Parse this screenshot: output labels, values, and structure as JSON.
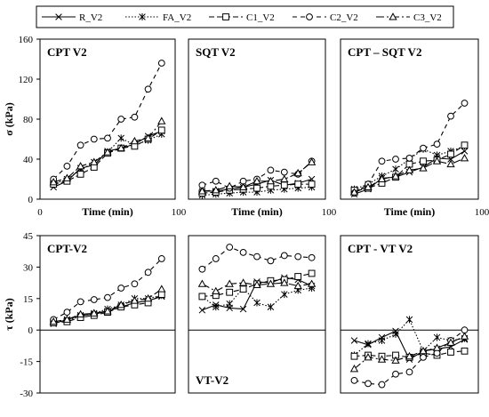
{
  "legend": {
    "entries": [
      {
        "name": "R_V2",
        "dash": "",
        "marker": "x"
      },
      {
        "name": "FA_V2",
        "dash": "1.5,2",
        "marker": "star"
      },
      {
        "name": "C1_V2",
        "dash": "6,3",
        "marker": "square"
      },
      {
        "name": "C2_V2",
        "dash": "5,4",
        "marker": "circle"
      },
      {
        "name": "C3_V2",
        "dash": "9,3,2,3",
        "marker": "triangle"
      }
    ]
  },
  "chart_data": [
    {
      "type": "line",
      "title": "CPT V2",
      "title_position": "top-left",
      "xlabel": "Time (min)",
      "ylabel": "σ (kPa)",
      "xlim": [
        0,
        100
      ],
      "ylim": [
        0,
        160
      ],
      "yticks": [
        0,
        40,
        80,
        120,
        160
      ],
      "yticks_shown": true,
      "xticks": [
        0,
        100
      ],
      "series": [
        {
          "name": "R_V2",
          "x": [
            10,
            20,
            30,
            40,
            50,
            60,
            70,
            80,
            90
          ],
          "y": [
            12,
            18,
            31,
            34,
            48,
            51,
            55,
            63,
            68
          ]
        },
        {
          "name": "FA_V2",
          "x": [
            10,
            20,
            30,
            40,
            50,
            60,
            70,
            80,
            90
          ],
          "y": [
            15,
            20,
            29,
            37,
            47,
            61,
            54,
            59,
            65
          ]
        },
        {
          "name": "C1_V2",
          "x": [
            10,
            20,
            30,
            40,
            50,
            60,
            70,
            80,
            90
          ],
          "y": [
            15,
            18,
            25,
            32,
            46,
            51,
            53,
            60,
            69
          ]
        },
        {
          "name": "C2_V2",
          "x": [
            10,
            20,
            30,
            40,
            50,
            60,
            70,
            80,
            90
          ],
          "y": [
            20,
            33,
            54,
            60,
            61,
            80,
            82,
            110,
            136
          ]
        },
        {
          "name": "C3_V2",
          "x": [
            10,
            20,
            30,
            40,
            50,
            60,
            70,
            80,
            90
          ],
          "y": [
            17,
            21,
            33,
            37,
            47,
            51,
            58,
            61,
            78
          ]
        }
      ]
    },
    {
      "type": "line",
      "title": "SQT V2",
      "title_position": "top-left",
      "xlabel": "Time (min)",
      "ylabel": "",
      "xlim": [
        0,
        100
      ],
      "ylim": [
        0,
        160
      ],
      "yticks_shown": false,
      "xticks": [
        100
      ],
      "series": [
        {
          "name": "R_V2",
          "x": [
            10,
            20,
            30,
            40,
            50,
            60,
            70,
            80,
            90
          ],
          "y": [
            8,
            8,
            10,
            12,
            15,
            19,
            14,
            16,
            20
          ]
        },
        {
          "name": "FA_V2",
          "x": [
            10,
            20,
            30,
            40,
            50,
            60,
            70,
            80,
            90
          ],
          "y": [
            4,
            5,
            6,
            7,
            7,
            9,
            10,
            11,
            12
          ]
        },
        {
          "name": "C1_V2",
          "x": [
            10,
            20,
            30,
            40,
            50,
            60,
            70,
            80,
            90
          ],
          "y": [
            6,
            7,
            9,
            10,
            11,
            13,
            14,
            15,
            15
          ]
        },
        {
          "name": "C2_V2",
          "x": [
            10,
            20,
            30,
            40,
            50,
            60,
            70,
            80,
            90
          ],
          "y": [
            14,
            18,
            11,
            18,
            20,
            29,
            27,
            25,
            38
          ]
        },
        {
          "name": "C3_V2",
          "x": [
            10,
            20,
            30,
            40,
            50,
            60,
            70,
            80,
            90
          ],
          "y": [
            8,
            9,
            13,
            12,
            18,
            18,
            20,
            26,
            37
          ]
        }
      ]
    },
    {
      "type": "line",
      "title": "CPT – SQT V2",
      "title_position": "top-left",
      "xlabel": "Time (min)",
      "ylabel": "",
      "xlim": [
        0,
        100
      ],
      "ylim": [
        0,
        160
      ],
      "yticks_shown": false,
      "xticks": [
        100
      ],
      "series": [
        {
          "name": "R_V2",
          "x": [
            10,
            20,
            30,
            40,
            50,
            60,
            70,
            80,
            90
          ],
          "y": [
            5,
            10,
            21,
            22,
            27,
            32,
            41,
            40,
            48
          ]
        },
        {
          "name": "FA_V2",
          "x": [
            10,
            20,
            30,
            40,
            50,
            60,
            70,
            80,
            90
          ],
          "y": [
            10,
            15,
            23,
            30,
            40,
            50,
            44,
            48,
            53
          ]
        },
        {
          "name": "C1_V2",
          "x": [
            10,
            20,
            30,
            40,
            50,
            60,
            70,
            80,
            90
          ],
          "y": [
            9,
            11,
            16,
            22,
            35,
            38,
            39,
            45,
            54
          ]
        },
        {
          "name": "C2_V2",
          "x": [
            10,
            20,
            30,
            40,
            50,
            60,
            70,
            80,
            90
          ],
          "y": [
            6,
            15,
            38,
            40,
            41,
            51,
            55,
            83,
            96
          ]
        },
        {
          "name": "C3_V2",
          "x": [
            10,
            20,
            30,
            40,
            50,
            60,
            70,
            80,
            90
          ],
          "y": [
            7,
            12,
            20,
            23,
            29,
            31,
            38,
            35,
            41
          ]
        }
      ]
    },
    {
      "type": "line",
      "title": "CPT-V2",
      "title_position": "top-left",
      "xlabel": "",
      "ylabel": "τ (kPa)",
      "xlim": [
        0,
        100
      ],
      "ylim": [
        -30,
        45
      ],
      "yticks": [
        -30,
        -15,
        0,
        15,
        30,
        45
      ],
      "yticks_shown": true,
      "xticks": [],
      "series": [
        {
          "name": "R_V2",
          "x": [
            10,
            20,
            30,
            40,
            50,
            60,
            70,
            80,
            90
          ],
          "y": [
            3,
            5,
            7,
            7.5,
            9,
            11,
            13,
            14,
            16
          ]
        },
        {
          "name": "FA_V2",
          "x": [
            10,
            20,
            30,
            40,
            50,
            60,
            70,
            80,
            90
          ],
          "y": [
            4,
            4.5,
            6.5,
            8,
            10,
            12,
            15,
            15,
            16.5
          ]
        },
        {
          "name": "C1_V2",
          "x": [
            10,
            20,
            30,
            40,
            50,
            60,
            70,
            80,
            90
          ],
          "y": [
            3.5,
            4,
            6,
            7,
            8.5,
            11,
            12,
            13,
            17
          ]
        },
        {
          "name": "C2_V2",
          "x": [
            10,
            20,
            30,
            40,
            50,
            60,
            70,
            80,
            90
          ],
          "y": [
            5,
            8.5,
            13.5,
            14.5,
            15.5,
            20,
            22,
            27.5,
            34
          ]
        },
        {
          "name": "C3_V2",
          "x": [
            10,
            20,
            30,
            40,
            50,
            60,
            70,
            80,
            90
          ],
          "y": [
            4,
            5,
            7.5,
            8,
            9,
            12,
            14,
            15,
            19.5
          ]
        }
      ]
    },
    {
      "type": "line",
      "title": "VT-V2",
      "title_position": "bottom-left",
      "xlabel": "",
      "ylabel": "",
      "xlim": [
        0,
        100
      ],
      "ylim": [
        -30,
        45
      ],
      "yticks_shown": false,
      "xticks": [],
      "series": [
        {
          "name": "R_V2",
          "x": [
            10,
            20,
            30,
            40,
            50,
            60,
            70,
            80,
            90
          ],
          "y": [
            9.5,
            12,
            10.5,
            10,
            23,
            22.5,
            25,
            24,
            21
          ]
        },
        {
          "name": "FA_V2",
          "x": [
            10,
            20,
            30,
            40,
            50,
            60,
            70,
            80,
            90
          ],
          "y": [
            16,
            11,
            12.5,
            20,
            13,
            11,
            17,
            19,
            20
          ]
        },
        {
          "name": "C1_V2",
          "x": [
            10,
            20,
            30,
            40,
            50,
            60,
            70,
            80,
            90
          ],
          "y": [
            16,
            16.5,
            18,
            19.5,
            22,
            23.5,
            24,
            25.5,
            27
          ]
        },
        {
          "name": "C2_V2",
          "x": [
            10,
            20,
            30,
            40,
            50,
            60,
            70,
            80,
            90
          ],
          "y": [
            29,
            34,
            39.5,
            37,
            35,
            33,
            35.5,
            35,
            34.5
          ]
        },
        {
          "name": "C3_V2",
          "x": [
            10,
            20,
            30,
            40,
            50,
            60,
            70,
            80,
            90
          ],
          "y": [
            22,
            18.5,
            22,
            22.5,
            21.5,
            22,
            22.5,
            21,
            22
          ]
        }
      ]
    },
    {
      "type": "line",
      "title": "CPT - VT V2",
      "title_position": "top-left",
      "xlabel": "",
      "ylabel": "",
      "xlim": [
        0,
        100
      ],
      "ylim": [
        -30,
        45
      ],
      "yticks_shown": false,
      "xticks": [],
      "series": [
        {
          "name": "R_V2",
          "x": [
            10,
            20,
            30,
            40,
            50,
            60,
            70,
            80,
            90
          ],
          "y": [
            -5,
            -7,
            -3.5,
            -0.5,
            -14,
            -10,
            -9,
            -8,
            -4.5
          ]
        },
        {
          "name": "FA_V2",
          "x": [
            10,
            20,
            30,
            40,
            50,
            60,
            70,
            80,
            90
          ],
          "y": [
            -12,
            -6.5,
            -5,
            -2,
            5,
            -10,
            -3.5,
            -5,
            -4
          ]
        },
        {
          "name": "C1_V2",
          "x": [
            10,
            20,
            30,
            40,
            50,
            60,
            70,
            80,
            90
          ],
          "y": [
            -12.5,
            -12,
            -12.5,
            -12,
            -13,
            -11,
            -12,
            -10.5,
            -10
          ]
        },
        {
          "name": "C2_V2",
          "x": [
            10,
            20,
            30,
            40,
            50,
            60,
            70,
            80,
            90
          ],
          "y": [
            -24,
            -25.5,
            -26,
            -21,
            -20,
            -13,
            -11,
            -5,
            0
          ]
        },
        {
          "name": "C3_V2",
          "x": [
            10,
            20,
            30,
            40,
            50,
            60,
            70,
            80,
            90
          ],
          "y": [
            -18.5,
            -13,
            -14,
            -14.5,
            -12.5,
            -10,
            -8.5,
            -6,
            -3
          ]
        }
      ]
    }
  ]
}
